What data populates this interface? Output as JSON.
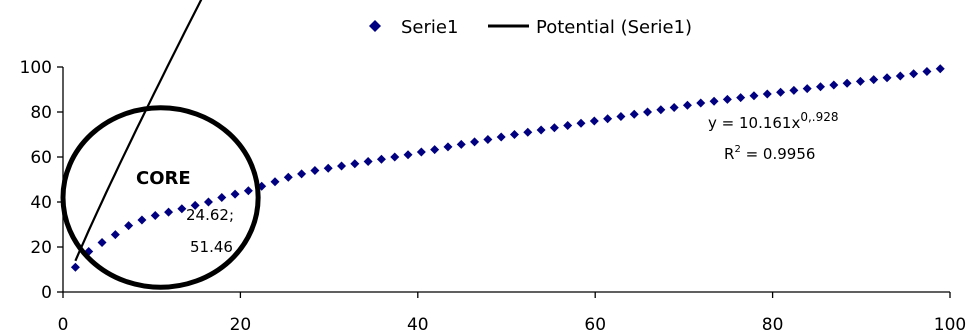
{
  "chart_data": {
    "type": "scatter",
    "title": "",
    "xlabel": "",
    "ylabel": "",
    "xlim": [
      0,
      100
    ],
    "ylim": [
      0,
      100
    ],
    "x_ticks": [
      "0",
      "20",
      "40",
      "60",
      "80",
      "100"
    ],
    "y_ticks": [
      "0",
      "20",
      "40",
      "60",
      "80",
      "100"
    ],
    "grid": false,
    "legend_position": "top",
    "legend": {
      "series_label": "Serie1",
      "trend_label": "Potential (Serie1)"
    },
    "series": [
      {
        "name": "Serie1",
        "color": "#000080",
        "marker": "diamond",
        "x": [
          1.4,
          2.9,
          4.4,
          5.9,
          7.4,
          8.9,
          10.4,
          11.9,
          13.4,
          14.9,
          16.4,
          17.9,
          19.4,
          20.9,
          22.4,
          23.9,
          25.4,
          26.9,
          28.4,
          29.9,
          31.4,
          32.9,
          34.4,
          35.9,
          37.4,
          38.9,
          40.4,
          41.9,
          43.4,
          44.9,
          46.4,
          47.9,
          49.4,
          50.9,
          52.4,
          53.9,
          55.4,
          56.9,
          58.4,
          59.9,
          61.4,
          62.9,
          64.4,
          65.9,
          67.4,
          68.9,
          70.4,
          71.9,
          73.4,
          74.9,
          76.4,
          77.9,
          79.4,
          80.9,
          82.4,
          83.9,
          85.4,
          86.9,
          88.4,
          89.9,
          91.4,
          92.9,
          94.4,
          95.9,
          97.4,
          98.9
        ],
        "y": [
          11,
          18,
          22,
          25.5,
          29.5,
          32,
          34,
          35.5,
          37,
          38.5,
          40,
          42,
          43.5,
          45,
          47,
          49,
          51,
          52.5,
          54,
          55,
          56,
          57,
          58,
          59,
          60,
          61,
          62.2,
          63.3,
          64.5,
          65.6,
          66.7,
          67.8,
          68.9,
          70,
          71,
          72,
          73,
          74,
          75,
          76,
          77,
          78,
          79,
          80,
          81,
          82,
          83,
          84,
          84.8,
          85.6,
          86.4,
          87.2,
          88,
          88.8,
          89.6,
          90.4,
          91.2,
          92,
          92.8,
          93.6,
          94.4,
          95.2,
          96,
          97,
          98,
          99.2
        ]
      }
    ],
    "trendline": {
      "name": "Potential (Serie1)",
      "type": "power",
      "coefficient": 10.161,
      "exponent": 0.928,
      "color": "#000000"
    },
    "annotations": {
      "equation_prefix": "y = 10.161x",
      "equation_exponent": "0,.928",
      "r2_prefix": "R",
      "r2_exponent": "2",
      "r2_value": " = 0.9956",
      "point_label_line1": "24.62;",
      "point_label_line2": "51.46",
      "core_label": "CORE"
    },
    "core_circle": {
      "center_x": 11,
      "center_y": 42,
      "radius_x_units": 11,
      "color": "#000000"
    }
  }
}
